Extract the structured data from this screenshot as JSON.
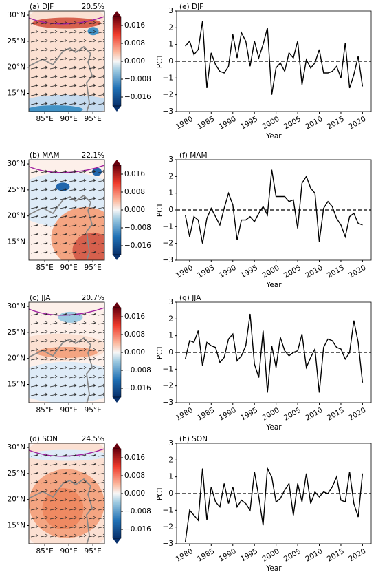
{
  "chart_data": [
    {
      "type": "map",
      "title": "(a) DJF",
      "annotation": "20.5%",
      "xlim": [
        81.7,
        97.4
      ],
      "ylim": [
        11.5,
        30.8
      ],
      "xticks": [
        {
          "value": 85,
          "label": "85°E"
        },
        {
          "value": 90,
          "label": "90°E"
        },
        {
          "value": 95,
          "label": "95°E"
        }
      ],
      "yticks": [
        {
          "value": 15,
          "label": "15°N"
        },
        {
          "value": 20,
          "label": "20°N"
        },
        {
          "value": 25,
          "label": "25°N"
        },
        {
          "value": 30,
          "label": "30°N"
        }
      ],
      "colorbar_lim": [
        -0.02,
        0.02
      ],
      "colorbar_ticks": [
        {
          "value": -0.016,
          "label": "−0.016"
        },
        {
          "value": -0.008,
          "label": "−0.008"
        },
        {
          "value": 0,
          "label": "0.000"
        },
        0.008,
        0.016
      ]
    },
    {
      "type": "map",
      "title": "(b) MAM",
      "annotation": "22.1%",
      "xlim": [
        81.7,
        97.4
      ],
      "ylim": [
        11.5,
        30.8
      ],
      "xticks": [
        {
          "value": 85,
          "label": "85°E"
        },
        {
          "value": 90,
          "label": "90°E"
        },
        {
          "value": 95,
          "label": "95°E"
        }
      ],
      "yticks": [
        {
          "value": 15,
          "label": "15°N"
        },
        {
          "value": 20,
          "label": "20°N"
        },
        {
          "value": 25,
          "label": "25°N"
        },
        {
          "value": 30,
          "label": "30°N"
        }
      ],
      "colorbar_lim": [
        -0.02,
        0.02
      ],
      "colorbar_ticks": [
        {
          "value": -0.016,
          "label": "−0.016"
        },
        {
          "value": -0.008,
          "label": "−0.008"
        },
        {
          "value": 0,
          "label": "0.000"
        },
        0.008,
        0.016
      ]
    },
    {
      "type": "map",
      "title": "(c) JJA",
      "annotation": "20.7%",
      "xlim": [
        81.7,
        97.4
      ],
      "ylim": [
        11.5,
        30.8
      ],
      "xticks": [
        {
          "value": 85,
          "label": "85°E"
        },
        {
          "value": 90,
          "label": "90°E"
        },
        {
          "value": 95,
          "label": "95°E"
        }
      ],
      "yticks": [
        {
          "value": 15,
          "label": "15°N"
        },
        {
          "value": 20,
          "label": "20°N"
        },
        {
          "value": 25,
          "label": "25°N"
        },
        {
          "value": 30,
          "label": "30°N"
        }
      ],
      "colorbar_lim": [
        -0.02,
        0.02
      ],
      "colorbar_ticks": [
        {
          "value": -0.016,
          "label": "−0.016"
        },
        {
          "value": -0.008,
          "label": "−0.008"
        },
        {
          "value": 0,
          "label": "0.000"
        },
        0.008,
        0.016
      ]
    },
    {
      "type": "map",
      "title": "(d) SON",
      "annotation": "24.5%",
      "xlim": [
        81.7,
        97.4
      ],
      "ylim": [
        11.5,
        30.8
      ],
      "xticks": [
        {
          "value": 85,
          "label": "85°E"
        },
        {
          "value": 90,
          "label": "90°E"
        },
        {
          "value": 95,
          "label": "95°E"
        }
      ],
      "yticks": [
        {
          "value": 15,
          "label": "15°N"
        },
        {
          "value": 20,
          "label": "20°N"
        },
        {
          "value": 25,
          "label": "25°N"
        },
        {
          "value": 30,
          "label": "30°N"
        }
      ],
      "colorbar_lim": [
        -0.02,
        0.02
      ],
      "colorbar_ticks": [
        {
          "value": -0.016,
          "label": "−0.016"
        },
        {
          "value": -0.008,
          "label": "−0.008"
        },
        {
          "value": 0,
          "label": "0.000"
        },
        0.008,
        0.016
      ]
    },
    {
      "type": "line",
      "title": "(e) DJF",
      "xlabel": "Year",
      "ylabel": "PC1",
      "color": "#000000",
      "reference_line": 0,
      "xlim": [
        1977,
        2022
      ],
      "ylim": [
        -3,
        3
      ],
      "xticks": [
        1980,
        1985,
        1990,
        1995,
        2000,
        2005,
        2010,
        2015,
        2020
      ],
      "yticks": [
        {
          "value": -3,
          "label": "−3"
        },
        {
          "value": -2,
          "label": "−2"
        },
        {
          "value": -1,
          "label": "−1"
        },
        0,
        1,
        2,
        3
      ],
      "x": [
        1979,
        1980,
        1981,
        1982,
        1983,
        1984,
        1985,
        1986,
        1987,
        1988,
        1989,
        1990,
        1991,
        1992,
        1993,
        1994,
        1995,
        1996,
        1997,
        1998,
        1999,
        2000,
        2001,
        2002,
        2003,
        2004,
        2005,
        2006,
        2007,
        2008,
        2009,
        2010,
        2011,
        2012,
        2013,
        2014,
        2015,
        2016,
        2017,
        2018,
        2019,
        2020
      ],
      "values": [
        0.9,
        1.2,
        0.4,
        0.7,
        2.4,
        -1.6,
        0.5,
        -0.2,
        -0.6,
        -0.7,
        -0.3,
        1.6,
        0.2,
        1.7,
        1.2,
        -0.3,
        1.2,
        0.2,
        1.0,
        2.0,
        -2.0,
        -0.4,
        -0.1,
        -0.6,
        0.5,
        0.2,
        1.2,
        -1.4,
        0.1,
        -0.4,
        -0.1,
        0.7,
        -0.7,
        -0.7,
        -0.6,
        -0.3,
        -1.0,
        1.1,
        -1.6,
        -0.8,
        0.3,
        -1.5
      ]
    },
    {
      "type": "line",
      "title": "(f) MAM",
      "xlabel": "Year",
      "ylabel": "PC1",
      "color": "#000000",
      "reference_line": 0,
      "xlim": [
        1977,
        2022
      ],
      "ylim": [
        -3,
        3
      ],
      "xticks": [
        1980,
        1985,
        1990,
        1995,
        2000,
        2005,
        2010,
        2015,
        2020
      ],
      "yticks": [
        {
          "value": -3,
          "label": "−3"
        },
        {
          "value": -2,
          "label": "−2"
        },
        {
          "value": -1,
          "label": "−1"
        },
        0,
        1,
        2,
        3
      ],
      "x": [
        1979,
        1980,
        1981,
        1982,
        1983,
        1984,
        1985,
        1986,
        1987,
        1988,
        1989,
        1990,
        1991,
        1992,
        1993,
        1994,
        1995,
        1996,
        1997,
        1998,
        1999,
        2000,
        2001,
        2002,
        2003,
        2004,
        2005,
        2006,
        2007,
        2008,
        2009,
        2010,
        2011,
        2012,
        2013,
        2014,
        2015,
        2016,
        2017,
        2018,
        2019,
        2020
      ],
      "values": [
        -0.3,
        -1.6,
        -0.4,
        -0.6,
        -2.0,
        -0.5,
        0.1,
        -0.4,
        -0.9,
        0.1,
        1.0,
        0.3,
        -1.8,
        -0.6,
        -0.6,
        -0.4,
        -0.7,
        -0.2,
        0.2,
        -0.3,
        2.4,
        0.8,
        0.8,
        0.8,
        0.5,
        0.6,
        -1.1,
        1.6,
        2.0,
        1.3,
        1.0,
        -1.9,
        0.1,
        0.5,
        0.2,
        -0.5,
        -0.9,
        -1.6,
        -0.4,
        -0.2,
        -0.8,
        -0.9
      ]
    },
    {
      "type": "line",
      "title": "(g) JJA",
      "xlabel": "Year",
      "ylabel": "PC1",
      "color": "#000000",
      "reference_line": 0,
      "xlim": [
        1977,
        2022
      ],
      "ylim": [
        -3,
        3
      ],
      "xticks": [
        1980,
        1985,
        1990,
        1995,
        2000,
        2005,
        2010,
        2015,
        2020
      ],
      "yticks": [
        {
          "value": -3,
          "label": "−3"
        },
        {
          "value": -2,
          "label": "−2"
        },
        {
          "value": -1,
          "label": "−1"
        },
        0,
        1,
        2,
        3
      ],
      "x": [
        1979,
        1980,
        1981,
        1982,
        1983,
        1984,
        1985,
        1986,
        1987,
        1988,
        1989,
        1990,
        1991,
        1992,
        1993,
        1994,
        1995,
        1996,
        1997,
        1998,
        1999,
        2000,
        2001,
        2002,
        2003,
        2004,
        2005,
        2006,
        2007,
        2008,
        2009,
        2010,
        2011,
        2012,
        2013,
        2014,
        2015,
        2016,
        2017,
        2018,
        2019,
        2020
      ],
      "values": [
        -0.4,
        0.7,
        0.6,
        1.3,
        -0.8,
        0.6,
        0.4,
        0.3,
        -0.6,
        -0.3,
        0.8,
        1.1,
        -0.5,
        -0.2,
        0.4,
        2.3,
        -0.7,
        -1.5,
        1.3,
        -2.4,
        0.4,
        -0.9,
        0.9,
        0.1,
        -0.2,
        0.0,
        0.1,
        1.1,
        -0.9,
        -0.3,
        0.2,
        -2.4,
        0.3,
        0.8,
        0.7,
        0.3,
        0.2,
        -0.4,
        0.0,
        1.9,
        0.6,
        -1.8
      ]
    },
    {
      "type": "line",
      "title": "(h) SON",
      "xlabel": "Year",
      "ylabel": "PC1",
      "color": "#000000",
      "reference_line": 0,
      "xlim": [
        1977,
        2022
      ],
      "ylim": [
        -3,
        3
      ],
      "xticks": [
        1980,
        1985,
        1990,
        1995,
        2000,
        2005,
        2010,
        2015,
        2020
      ],
      "yticks": [
        {
          "value": -3,
          "label": "−3"
        },
        {
          "value": -2,
          "label": "−2"
        },
        {
          "value": -1,
          "label": "−1"
        },
        0,
        1,
        2,
        3
      ],
      "x": [
        1979,
        1980,
        1981,
        1982,
        1983,
        1984,
        1985,
        1986,
        1987,
        1988,
        1989,
        1990,
        1991,
        1992,
        1993,
        1994,
        1995,
        1996,
        1997,
        1998,
        1999,
        2000,
        2001,
        2002,
        2003,
        2004,
        2005,
        2006,
        2007,
        2008,
        2009,
        2010,
        2011,
        2012,
        2013,
        2014,
        2015,
        2016,
        2017,
        2018,
        2019,
        2020
      ],
      "values": [
        -2.9,
        -1.0,
        -1.3,
        -1.6,
        1.5,
        -1.6,
        0.4,
        -0.5,
        -0.8,
        0.6,
        -0.6,
        0.4,
        -0.8,
        -0.4,
        -0.6,
        -1.0,
        1.3,
        -0.2,
        -1.9,
        1.5,
        1.0,
        -0.5,
        -0.3,
        0.2,
        0.6,
        -1.3,
        0.6,
        -0.5,
        1.2,
        -0.6,
        0.1,
        -0.2,
        0.1,
        0.0,
        0.4,
        1.0,
        -0.4,
        -0.5,
        1.3,
        -0.6,
        -1.4,
        1.2
      ]
    }
  ]
}
